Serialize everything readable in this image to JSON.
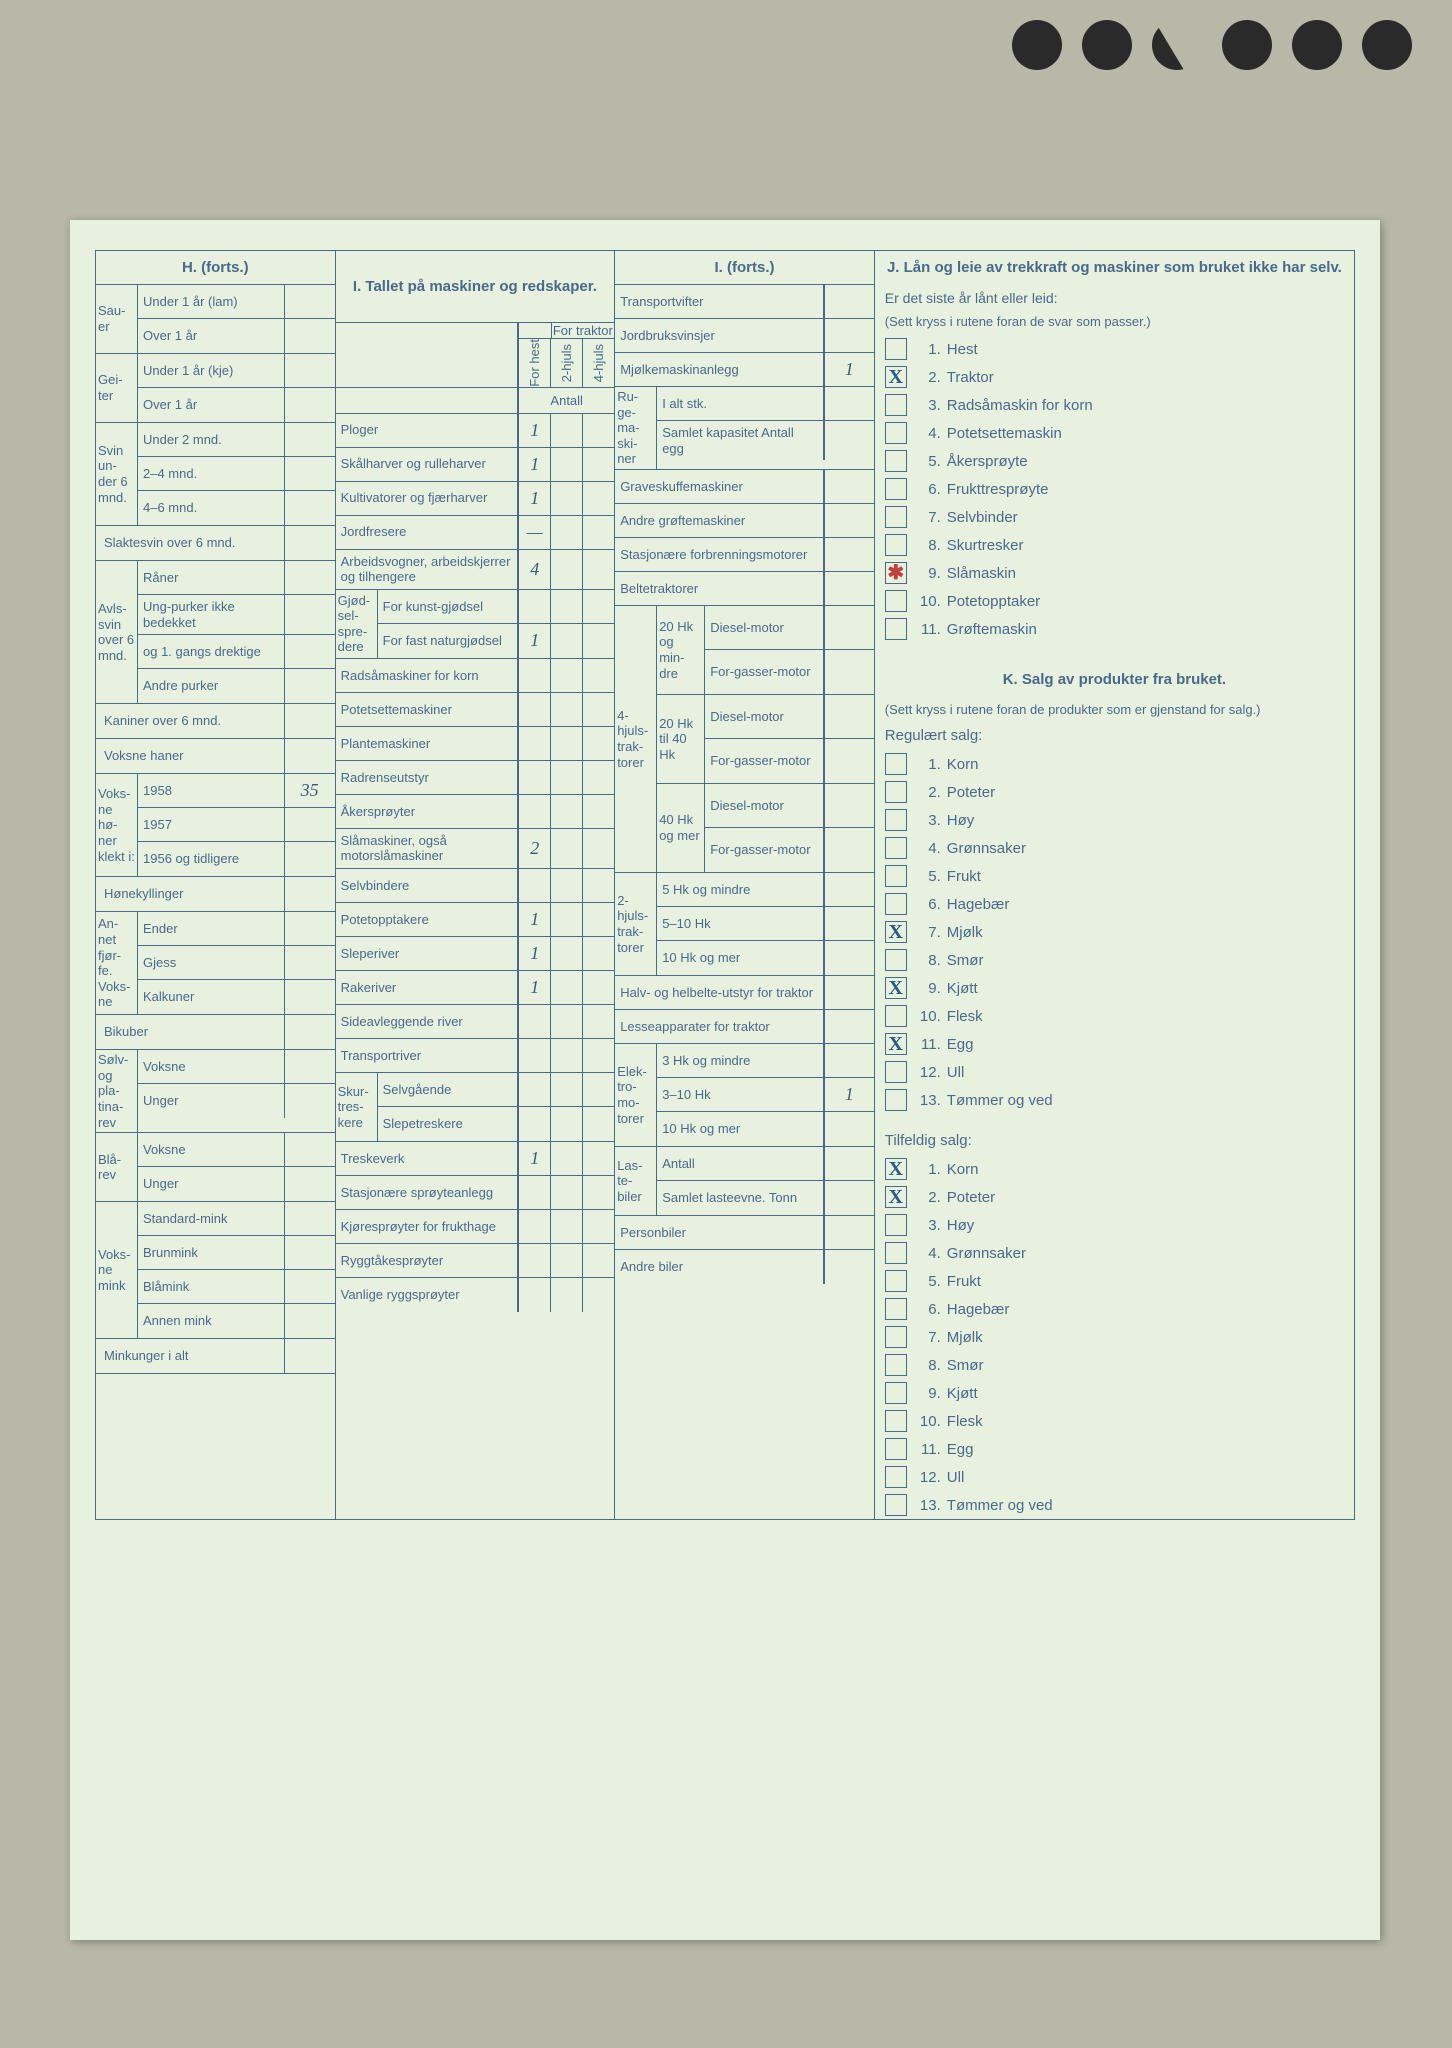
{
  "holes_count": 6,
  "sections": {
    "H": {
      "title": "H. (forts.)",
      "groups": [
        {
          "side": "Sau-er",
          "rows": [
            {
              "l": "Under 1 år (lam)",
              "v": ""
            },
            {
              "l": "Over 1 år",
              "v": ""
            }
          ]
        },
        {
          "side": "Gei-ter",
          "rows": [
            {
              "l": "Under 1 år (kje)",
              "v": ""
            },
            {
              "l": "Over 1 år",
              "v": ""
            }
          ]
        },
        {
          "side": "Svin un-der 6 mnd.",
          "rows": [
            {
              "l": "Under 2 mnd.",
              "v": ""
            },
            {
              "l": "2–4 mnd.",
              "v": ""
            },
            {
              "l": "4–6 mnd.",
              "v": ""
            }
          ]
        },
        {
          "side": "",
          "rows": [
            {
              "l": "Slaktesvin over 6 mnd.",
              "v": "",
              "full": true
            }
          ]
        },
        {
          "side": "Avls-svin over 6 mnd.",
          "rows": [
            {
              "l": "Råner",
              "v": ""
            },
            {
              "l": "Ung-purker ikke bedekket",
              "v": ""
            },
            {
              "l": "og 1. gangs drektige",
              "v": ""
            },
            {
              "l": "Andre purker",
              "v": ""
            }
          ]
        },
        {
          "side": "",
          "rows": [
            {
              "l": "Kaniner over 6 mnd.",
              "v": "",
              "full": true
            }
          ]
        },
        {
          "side": "",
          "rows": [
            {
              "l": "Voksne haner",
              "v": "",
              "full": true
            }
          ]
        },
        {
          "side": "Voks-ne hø-ner klekt i:",
          "rows": [
            {
              "l": "1958",
              "v": "35"
            },
            {
              "l": "1957",
              "v": ""
            },
            {
              "l": "1956 og tidligere",
              "v": ""
            }
          ]
        },
        {
          "side": "",
          "rows": [
            {
              "l": "Hønekyllinger",
              "v": "",
              "full": true
            }
          ]
        },
        {
          "side": "An-net fjør-fe. Voks-ne",
          "rows": [
            {
              "l": "Ender",
              "v": ""
            },
            {
              "l": "Gjess",
              "v": ""
            },
            {
              "l": "Kalkuner",
              "v": ""
            }
          ]
        },
        {
          "side": "",
          "rows": [
            {
              "l": "Bikuber",
              "v": "",
              "full": true
            }
          ]
        },
        {
          "side": "Sølv- og pla-tina-rev",
          "rows": [
            {
              "l": "Voksne",
              "v": ""
            },
            {
              "l": "Unger",
              "v": ""
            }
          ]
        },
        {
          "side": "Blå-rev",
          "rows": [
            {
              "l": "Voksne",
              "v": ""
            },
            {
              "l": "Unger",
              "v": ""
            }
          ]
        },
        {
          "side": "Voks-ne mink",
          "rows": [
            {
              "l": "Standard-mink",
              "v": ""
            },
            {
              "l": "Brunmink",
              "v": ""
            },
            {
              "l": "Blåmink",
              "v": ""
            },
            {
              "l": "Annen mink",
              "v": ""
            }
          ]
        },
        {
          "side": "",
          "rows": [
            {
              "l": "Minkunger i alt",
              "v": "",
              "full": true
            }
          ]
        }
      ]
    },
    "I": {
      "title": "I. Tallet på maskiner og redskaper.",
      "for_traktor": "For traktor",
      "col_labels": [
        "For hest",
        "2-hjuls",
        "4-hjuls"
      ],
      "antall": "Antall",
      "rows": [
        {
          "l": "Ploger",
          "v": [
            "1",
            "",
            ""
          ]
        },
        {
          "l": "Skålharver og rulleharver",
          "v": [
            "1",
            "",
            ""
          ]
        },
        {
          "l": "Kultivatorer og fjærharver",
          "v": [
            "1",
            "",
            ""
          ]
        },
        {
          "l": "Jordfresere",
          "v": [
            "—",
            "",
            ""
          ]
        },
        {
          "l": "Arbeidsvogner, arbeidskjerrer og tilhengere",
          "v": [
            "4",
            "",
            ""
          ]
        },
        {
          "l": "For kunst-gjødsel",
          "side": "Gjød-sel-spre-dere",
          "v": [
            "",
            "",
            ""
          ]
        },
        {
          "l": "For fast naturgjødsel",
          "side_cont": true,
          "v": [
            "1",
            "",
            ""
          ]
        },
        {
          "l": "Radsåmaskiner for korn",
          "v": [
            "",
            "",
            ""
          ]
        },
        {
          "l": "Potetsettemaskiner",
          "v": [
            "",
            "",
            ""
          ]
        },
        {
          "l": "Plantemaskiner",
          "v": [
            "",
            "",
            ""
          ]
        },
        {
          "l": "Radrenseutstyr",
          "v": [
            "",
            "",
            ""
          ]
        },
        {
          "l": "Åkersprøyter",
          "v": [
            "",
            "",
            ""
          ]
        },
        {
          "l": "Slåmaskiner, også motorslåmaskiner",
          "v": [
            "2",
            "",
            ""
          ]
        },
        {
          "l": "Selvbindere",
          "v": [
            "",
            "",
            ""
          ]
        },
        {
          "l": "Potetopptakere",
          "v": [
            "1",
            "",
            ""
          ]
        },
        {
          "l": "Sleperiver",
          "v": [
            "1",
            "",
            ""
          ]
        },
        {
          "l": "Rakeriver",
          "v": [
            "1",
            "",
            ""
          ]
        },
        {
          "l": "Sideavleggende river",
          "v": [
            "",
            "",
            ""
          ]
        },
        {
          "l": "Transportriver",
          "v": [
            "",
            "",
            ""
          ]
        },
        {
          "l": "Selvgående",
          "side": "Skur-tres-kere",
          "v": [
            "",
            "",
            ""
          ]
        },
        {
          "l": "Slepetreskere",
          "side_cont": true,
          "v": [
            "",
            "",
            ""
          ]
        },
        {
          "l": "Treskeverk",
          "v": [
            "1",
            "",
            ""
          ]
        },
        {
          "l": "Stasjonære sprøyteanlegg",
          "v": [
            "",
            "",
            ""
          ]
        },
        {
          "l": "Kjøresprøyter for frukthage",
          "v": [
            "",
            "",
            ""
          ]
        },
        {
          "l": "Ryggtåkesprøyter",
          "v": [
            "",
            "",
            ""
          ]
        },
        {
          "l": "Vanlige ryggsprøyter",
          "v": [
            "",
            "",
            ""
          ]
        }
      ]
    },
    "I2": {
      "title": "I. (forts.)",
      "rows_top": [
        {
          "l": "Transportvifter",
          "v": ""
        },
        {
          "l": "Jordbruksvinsjer",
          "v": ""
        },
        {
          "l": "Mjølkemaskinanlegg",
          "v": "1"
        }
      ],
      "ruge": {
        "side": "Ru-ge-ma-ski-ner",
        "rows": [
          {
            "l": "I alt stk.",
            "v": ""
          },
          {
            "l": "Samlet kapasitet Antall egg",
            "v": ""
          }
        ]
      },
      "rows_mid": [
        {
          "l": "Graveskuffemaskiner",
          "v": ""
        },
        {
          "l": "Andre grøftemaskiner",
          "v": ""
        },
        {
          "l": "Stasjonære forbrenningsmotorer",
          "v": ""
        },
        {
          "l": "Beltetraktorer",
          "v": ""
        }
      ],
      "traktor4": {
        "side": "4-hjuls-trak-torer",
        "groups": [
          {
            "g": "20 Hk og min-dre",
            "rows": [
              {
                "l": "Diesel-motor",
                "v": ""
              },
              {
                "l": "For-gasser-motor",
                "v": ""
              }
            ]
          },
          {
            "g": "20 Hk til 40 Hk",
            "rows": [
              {
                "l": "Diesel-motor",
                "v": ""
              },
              {
                "l": "For-gasser-motor",
                "v": ""
              }
            ]
          },
          {
            "g": "40 Hk og mer",
            "rows": [
              {
                "l": "Diesel-motor",
                "v": ""
              },
              {
                "l": "For-gasser-motor",
                "v": ""
              }
            ]
          }
        ]
      },
      "traktor2": {
        "side": "2-hjuls-trak-torer",
        "rows": [
          {
            "l": "5 Hk og mindre",
            "v": ""
          },
          {
            "l": "5–10 Hk",
            "v": ""
          },
          {
            "l": "10 Hk og mer",
            "v": ""
          }
        ]
      },
      "halv": {
        "l": "Halv- og helbelte-utstyr for traktor",
        "v": ""
      },
      "lesse": {
        "l": "Lesseapparater for traktor",
        "v": ""
      },
      "elektro": {
        "side": "Elek-tro-mo-torer",
        "rows": [
          {
            "l": "3 Hk og mindre",
            "v": ""
          },
          {
            "l": "3–10 Hk",
            "v": "1"
          },
          {
            "l": "10 Hk og mer",
            "v": ""
          }
        ]
      },
      "laste": {
        "side": "Las-te-biler",
        "rows": [
          {
            "l": "Antall",
            "v": ""
          },
          {
            "l": "Samlet lasteevne. Tonn",
            "v": ""
          }
        ]
      },
      "rows_bot": [
        {
          "l": "Personbiler",
          "v": ""
        },
        {
          "l": "Andre biler",
          "v": ""
        }
      ]
    },
    "J": {
      "title": "J. Lån og leie av trekkraft og maskiner som bruket ikke har selv.",
      "sub": "Er det siste år lånt eller leid:",
      "note": "(Sett kryss i rutene foran de svar som passer.)",
      "items": [
        {
          "n": "1.",
          "l": "Hest",
          "x": ""
        },
        {
          "n": "2.",
          "l": "Traktor",
          "x": "X"
        },
        {
          "n": "3.",
          "l": "Radsåmaskin for korn",
          "x": ""
        },
        {
          "n": "4.",
          "l": "Potetsettemaskin",
          "x": ""
        },
        {
          "n": "5.",
          "l": "Åkersprøyte",
          "x": ""
        },
        {
          "n": "6.",
          "l": "Frukttresprøyte",
          "x": ""
        },
        {
          "n": "7.",
          "l": "Selvbinder",
          "x": ""
        },
        {
          "n": "8.",
          "l": "Skurtresker",
          "x": ""
        },
        {
          "n": "9.",
          "l": "Slåmaskin",
          "x": "✱",
          "red": true
        },
        {
          "n": "10.",
          "l": "Potetopptaker",
          "x": ""
        },
        {
          "n": "11.",
          "l": "Grøftemaskin",
          "x": ""
        }
      ]
    },
    "K": {
      "title": "K. Salg av produkter fra bruket.",
      "note": "(Sett kryss i rutene foran de produkter som er gjenstand for salg.)",
      "reg_label": "Regulært salg:",
      "reg": [
        {
          "n": "1.",
          "l": "Korn",
          "x": ""
        },
        {
          "n": "2.",
          "l": "Poteter",
          "x": ""
        },
        {
          "n": "3.",
          "l": "Høy",
          "x": ""
        },
        {
          "n": "4.",
          "l": "Grønnsaker",
          "x": ""
        },
        {
          "n": "5.",
          "l": "Frukt",
          "x": ""
        },
        {
          "n": "6.",
          "l": "Hagebær",
          "x": ""
        },
        {
          "n": "7.",
          "l": "Mjølk",
          "x": "X"
        },
        {
          "n": "8.",
          "l": "Smør",
          "x": ""
        },
        {
          "n": "9.",
          "l": "Kjøtt",
          "x": "X"
        },
        {
          "n": "10.",
          "l": "Flesk",
          "x": ""
        },
        {
          "n": "11.",
          "l": "Egg",
          "x": "X"
        },
        {
          "n": "12.",
          "l": "Ull",
          "x": ""
        },
        {
          "n": "13.",
          "l": "Tømmer og ved",
          "x": ""
        }
      ],
      "tilf_label": "Tilfeldig salg:",
      "tilf": [
        {
          "n": "1.",
          "l": "Korn",
          "x": "X"
        },
        {
          "n": "2.",
          "l": "Poteter",
          "x": "X"
        },
        {
          "n": "3.",
          "l": "Høy",
          "x": ""
        },
        {
          "n": "4.",
          "l": "Grønnsaker",
          "x": ""
        },
        {
          "n": "5.",
          "l": "Frukt",
          "x": ""
        },
        {
          "n": "6.",
          "l": "Hagebær",
          "x": ""
        },
        {
          "n": "7.",
          "l": "Mjølk",
          "x": ""
        },
        {
          "n": "8.",
          "l": "Smør",
          "x": ""
        },
        {
          "n": "9.",
          "l": "Kjøtt",
          "x": ""
        },
        {
          "n": "10.",
          "l": "Flesk",
          "x": ""
        },
        {
          "n": "11.",
          "l": "Egg",
          "x": ""
        },
        {
          "n": "12.",
          "l": "Ull",
          "x": ""
        },
        {
          "n": "13.",
          "l": "Tømmer og ved",
          "x": ""
        }
      ]
    }
  }
}
